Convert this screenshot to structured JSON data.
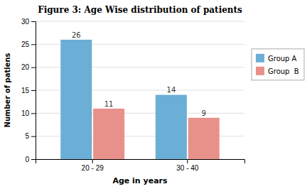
{
  "chart_data": {
    "type": "bar",
    "title": "Figure 3: Age Wise distribution of patients",
    "x_label": "Age in years",
    "y_label": "Number of patiens",
    "categories": [
      "20 - 29",
      "30 - 40"
    ],
    "series": [
      {
        "name": "Group A",
        "color": "#6baed6",
        "values": [
          26,
          14
        ]
      },
      {
        "name": "Group  B",
        "color": "#e8918a",
        "values": [
          11,
          9
        ]
      }
    ],
    "ylim": [
      0,
      30
    ],
    "yticks": [
      0,
      5,
      10,
      15,
      20,
      25,
      30
    ],
    "grid": true,
    "legend": "right",
    "data_labels": true
  }
}
